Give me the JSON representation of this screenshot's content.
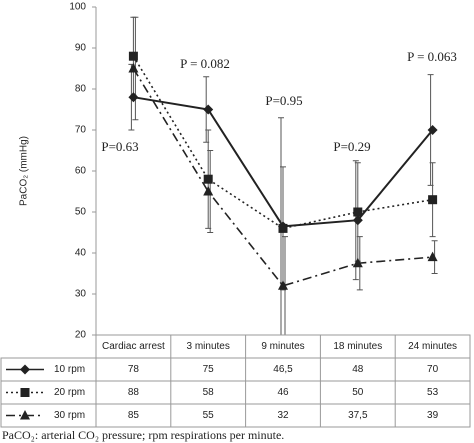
{
  "chart_data": {
    "type": "line",
    "y_label": "PaCO₂ (mmHg)",
    "categories": [
      "Cardiac arrest",
      "3 minutes",
      "9 minutes",
      "18 minutes",
      "24 minutes"
    ],
    "series": [
      {
        "name": "10 rpm",
        "color": "#222222",
        "marker": "diamond",
        "dash": "solid",
        "values": [
          78,
          75,
          46.5,
          48,
          70
        ],
        "value_labels": [
          "78",
          "75",
          "46,5",
          "48",
          "70"
        ],
        "errors": [
          8,
          8,
          26.5,
          14.5,
          13.5
        ]
      },
      {
        "name": "20 rpm",
        "color": "#222222",
        "marker": "square",
        "dash": "dotted",
        "values": [
          88,
          58,
          46,
          50,
          53
        ],
        "value_labels": [
          "88",
          "58",
          "46",
          "50",
          "53"
        ],
        "errors": [
          9.5,
          12,
          15,
          12,
          9
        ]
      },
      {
        "name": "30 rpm",
        "color": "#222222",
        "marker": "triangle",
        "dash": "dashdot",
        "values": [
          85,
          55,
          32,
          37.5,
          39
        ],
        "value_labels": [
          "85",
          "55",
          "32",
          "37,5",
          "39"
        ],
        "errors": [
          12.5,
          10,
          12,
          6.5,
          4
        ]
      }
    ],
    "annotations": [
      "P=0.63",
      "P = 0.082",
      "P=0.95",
      "P=0.29",
      "P = 0.063"
    ],
    "ylim": [
      20,
      100
    ],
    "yticks": [
      20,
      30,
      40,
      50,
      60,
      70,
      80,
      90,
      100
    ],
    "grid": false,
    "caption": "PaCO₂: arterial CO₂ pressure; rpm respirations per minute."
  }
}
